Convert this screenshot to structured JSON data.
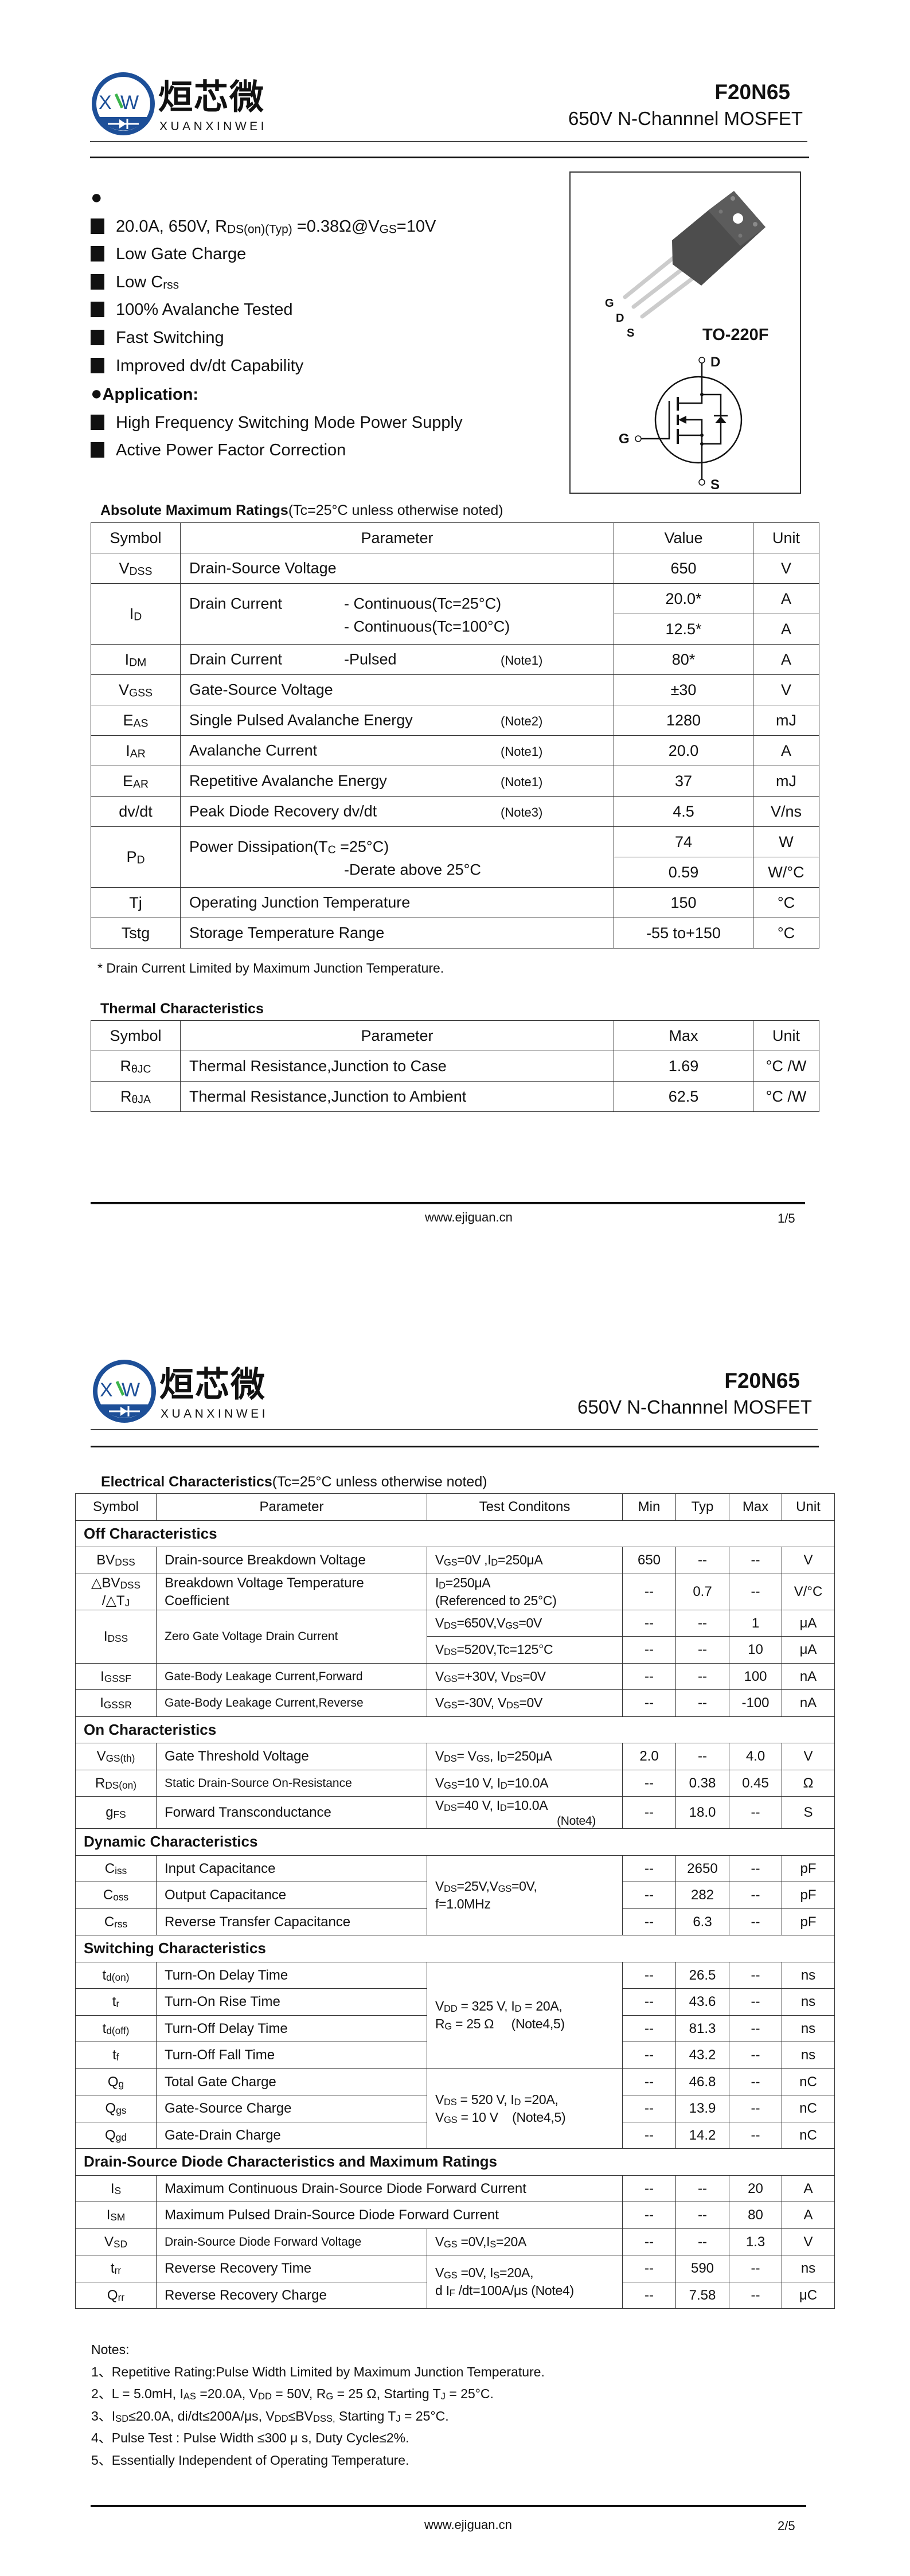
{
  "header": {
    "logo": {
      "name_cn": "烜芯微",
      "name_en": "XUANXINWEI",
      "mark": "XW",
      "ring_color": "#1d4f98",
      "accent_color": "#3cb44b"
    },
    "part_number": "F20N65",
    "description": "650V N-Channnel MOSFET"
  },
  "features": {
    "items": [
      "20.0A, 650V, R_{DS(on)(Typ)} =0.38Ω@V_{GS}=10V",
      "Low Gate Charge",
      "Low C_{rss}",
      "100% Avalanche Tested",
      "Fast Switching",
      "Improved dv/dt Capability"
    ],
    "application_title": "Application:",
    "applications": [
      "High Frequency Switching Mode Power Supply",
      "Active Power Factor Correction"
    ]
  },
  "package": {
    "name": "TO-220F",
    "pin_labels": [
      "G",
      "D",
      "S"
    ],
    "schematic_labels": {
      "drain": "D",
      "gate": "G",
      "source": "S"
    }
  },
  "abs_max": {
    "title": "Absolute Maximum Ratings",
    "title_note": "(Tc=25°C unless otherwise noted)",
    "headers": [
      "Symbol",
      "Parameter",
      "Value",
      "Unit"
    ],
    "rows": [
      {
        "symbol": "V_{DSS}",
        "parameter": "Drain-Source Voltage",
        "values": [
          "650"
        ],
        "units": [
          "V"
        ]
      },
      {
        "symbol": "I_{D}",
        "parameter": "Drain Current",
        "conditions": [
          "- Continuous(Tc=25°C)",
          "- Continuous(Tc=100°C)"
        ],
        "values": [
          "20.0*",
          "12.5*"
        ],
        "units": [
          "A",
          "A"
        ]
      },
      {
        "symbol": "I_{DM}",
        "parameter": "Drain Current",
        "conditions": [
          "-Pulsed"
        ],
        "note": "(Note1)",
        "values": [
          "80*"
        ],
        "units": [
          "A"
        ]
      },
      {
        "symbol": "V_{GSS}",
        "parameter": "Gate-Source Voltage",
        "values": [
          "±30"
        ],
        "units": [
          "V"
        ]
      },
      {
        "symbol": "E_{AS}",
        "parameter": "Single Pulsed Avalanche Energy",
        "note": "(Note2)",
        "values": [
          "1280"
        ],
        "units": [
          "mJ"
        ]
      },
      {
        "symbol": "I_{AR}",
        "parameter": "Avalanche Current",
        "note": "(Note1)",
        "values": [
          "20.0"
        ],
        "units": [
          "A"
        ]
      },
      {
        "symbol": "E_{AR}",
        "parameter": "Repetitive Avalanche Energy",
        "note": "(Note1)",
        "values": [
          "37"
        ],
        "units": [
          "mJ"
        ]
      },
      {
        "symbol": "dv/dt",
        "parameter": "Peak Diode Recovery dv/dt",
        "note": "(Note3)",
        "values": [
          "4.5"
        ],
        "units": [
          "V/ns"
        ]
      },
      {
        "symbol": "P_{D}",
        "parameter": "Power Dissipation(T_{C} =25°C)",
        "conditions": [
          "-Derate above 25°C"
        ],
        "values": [
          "74",
          "0.59"
        ],
        "units": [
          "W",
          "W/°C"
        ]
      },
      {
        "symbol": "Tj",
        "parameter": "Operating Junction Temperature",
        "values": [
          "150"
        ],
        "units": [
          "°C"
        ]
      },
      {
        "symbol": "Tstg",
        "parameter": "Storage Temperature Range",
        "values": [
          "-55 to+150"
        ],
        "units": [
          "°C"
        ]
      }
    ],
    "footnote": "* Drain Current Limited by Maximum Junction Temperature."
  },
  "thermal": {
    "title": "Thermal Characteristics",
    "headers": [
      "Symbol",
      "Parameter",
      "Max",
      "Unit"
    ],
    "rows": [
      {
        "symbol": "R_{θJC}",
        "parameter": "Thermal Resistance,Junction to Case",
        "max": "1.69",
        "unit": "°C /W"
      },
      {
        "symbol": "R_{θJA}",
        "parameter": "Thermal Resistance,Junction to Ambient",
        "max": "62.5",
        "unit": "°C /W"
      }
    ]
  },
  "electrical": {
    "title": "Electrical Characteristics",
    "title_note": "(Tc=25°C unless otherwise noted)",
    "headers": [
      "Symbol",
      "Parameter",
      "Test Conditons",
      "Min",
      "Typ",
      "Max",
      "Unit"
    ],
    "sections": [
      {
        "title": "Off Characteristics",
        "rows": [
          {
            "symbol": "BV_{DSS}",
            "parameter": "Drain-source Breakdown Voltage",
            "condition": "V_{GS}=0V ,I_{D}=250μA",
            "min": "650",
            "typ": "--",
            "max": "--",
            "unit": "V"
          },
          {
            "symbol": "△BV_{DSS}\n/△T_{J}",
            "parameter": "Breakdown Voltage Temperature\nCoefficient",
            "condition": "I_{D}=250μA\n(Referenced to 25°C)",
            "min": "--",
            "typ": "0.7",
            "max": "--",
            "unit": "V/°C"
          },
          {
            "symbol": "I_{DSS}",
            "parameter": "Zero Gate Voltage Drain Current",
            "condition": "V_{DS}=650V,V_{GS}=0V",
            "min": "--",
            "typ": "--",
            "max": "1",
            "unit": "μA"
          },
          {
            "condition": "V_{DS}=520V,Tc=125°C",
            "min": "--",
            "typ": "--",
            "max": "10",
            "unit": "μA"
          },
          {
            "symbol": "I_{GSSF}",
            "parameter": "Gate-Body Leakage Current,Forward",
            "condition": "V_{GS}=+30V, V_{DS}=0V",
            "min": "--",
            "typ": "--",
            "max": "100",
            "unit": "nA"
          },
          {
            "symbol": "I_{GSSR}",
            "parameter": "Gate-Body Leakage Current,Reverse",
            "condition": "V_{GS}=-30V, V_{DS}=0V",
            "min": "--",
            "typ": "--",
            "max": "-100",
            "unit": "nA"
          }
        ]
      },
      {
        "title": "On Characteristics",
        "rows": [
          {
            "symbol": "V_{GS(th)}",
            "parameter": "Gate Threshold Voltage",
            "condition": "V_{DS}= V_{GS}, I_{D}=250μA",
            "min": "2.0",
            "typ": "--",
            "max": "4.0",
            "unit": "V"
          },
          {
            "symbol": "R_{DS(on)}",
            "parameter": "Static Drain-Source On-Resistance",
            "condition": "V_{GS}=10 V, I_{D}=10.0A",
            "min": "--",
            "typ": "0.38",
            "max": "0.45",
            "unit": "Ω"
          },
          {
            "symbol": "g_{FS}",
            "parameter": "Forward Transconductance",
            "condition": "V_{DS}=40 V, I_{D}=10.0A",
            "condition_note": "(Note4)",
            "min": "--",
            "typ": "18.0",
            "max": "--",
            "unit": "S"
          }
        ]
      },
      {
        "title": "Dynamic Characteristics",
        "rows": [
          {
            "symbol": "C_{iss}",
            "parameter": "Input Capacitance",
            "condition": "V_{DS}=25V,V_{GS}=0V,\nf=1.0MHz",
            "min": "--",
            "typ": "2650",
            "max": "--",
            "unit": "pF"
          },
          {
            "symbol": "C_{oss}",
            "parameter": "Output Capacitance",
            "min": "--",
            "typ": "282",
            "max": "--",
            "unit": "pF"
          },
          {
            "symbol": "C_{rss}",
            "parameter": "Reverse Transfer Capacitance",
            "min": "--",
            "typ": "6.3",
            "max": "--",
            "unit": "pF"
          }
        ]
      },
      {
        "title": "Switching Characteristics",
        "rows": [
          {
            "symbol": "t_{d(on)}",
            "parameter": "Turn-On Delay Time",
            "condition": "V_{DD} = 325 V, I_{D} = 20A,\nR_{G} = 25 Ω     (Note4,5)",
            "min": "--",
            "typ": "26.5",
            "max": "--",
            "unit": "ns"
          },
          {
            "symbol": "t_{r}",
            "parameter": "Turn-On Rise Time",
            "min": "--",
            "typ": "43.6",
            "max": "--",
            "unit": "ns"
          },
          {
            "symbol": "t_{d(off)}",
            "parameter": "Turn-Off Delay Time",
            "min": "--",
            "typ": "81.3",
            "max": "--",
            "unit": "ns"
          },
          {
            "symbol": "t_{f}",
            "parameter": "Turn-Off Fall Time",
            "min": "--",
            "typ": "43.2",
            "max": "--",
            "unit": "ns"
          },
          {
            "symbol": "Q_{g}",
            "parameter": "Total Gate Charge",
            "condition": "V_{DS} = 520 V, I_{D} =20A,\nV_{GS} = 10 V    (Note4,5)",
            "min": "--",
            "typ": "46.8",
            "max": "--",
            "unit": "nC"
          },
          {
            "symbol": "Q_{gs}",
            "parameter": "Gate-Source Charge",
            "min": "--",
            "typ": "13.9",
            "max": "--",
            "unit": "nC"
          },
          {
            "symbol": "Q_{gd}",
            "parameter": "Gate-Drain Charge",
            "min": "--",
            "typ": "14.2",
            "max": "--",
            "unit": "nC"
          }
        ]
      },
      {
        "title": "Drain-Source Diode Characteristics and Maximum Ratings",
        "rows": [
          {
            "symbol": "I_{S}",
            "parameter_full": "Maximum Continuous Drain-Source Diode Forward Current",
            "min": "--",
            "typ": "--",
            "max": "20",
            "unit": "A"
          },
          {
            "symbol": "I_{SM}",
            "parameter_full": "Maximum Pulsed Drain-Source Diode Forward Current",
            "min": "--",
            "typ": "--",
            "max": "80",
            "unit": "A"
          },
          {
            "symbol": "V_{SD}",
            "parameter": "Drain-Source Diode Forward Voltage",
            "condition": "V_{GS} =0V,I_{S}=20A",
            "min": "--",
            "typ": "--",
            "max": "1.3",
            "unit": "V"
          },
          {
            "symbol": "t_{rr}",
            "parameter": "Reverse Recovery Time",
            "condition": "V_{GS} =0V, I_{S}=20A,\nd I_{F} /dt=100A/μs (Note4)",
            "min": "--",
            "typ": "590",
            "max": "--",
            "unit": "ns"
          },
          {
            "symbol": "Q_{rr}",
            "parameter": "Reverse Recovery Charge",
            "min": "--",
            "typ": "7.58",
            "max": "--",
            "unit": "μC"
          }
        ]
      }
    ]
  },
  "notes": {
    "title": "Notes:",
    "items": [
      "1、Repetitive Rating:Pulse Width Limited by Maximum Junction Temperature.",
      "2、L = 5.0mH, I_{AS} =20.0A, V_{DD} = 50V, R_{G} = 25 Ω, Starting T_{J} = 25°C.",
      "3、I_{SD}≤20.0A, di/dt≤200A/μs, V_{DD}≤BV_{DSS,} Starting T_{J} = 25°C.",
      "4、Pulse Test : Pulse Width ≤300 μ s, Duty Cycle≤2%.",
      "5、Essentially Independent of Operating Temperature."
    ]
  },
  "footer": {
    "website": "www.ejiguan.cn",
    "page1": "1/5",
    "page2": "2/5"
  }
}
